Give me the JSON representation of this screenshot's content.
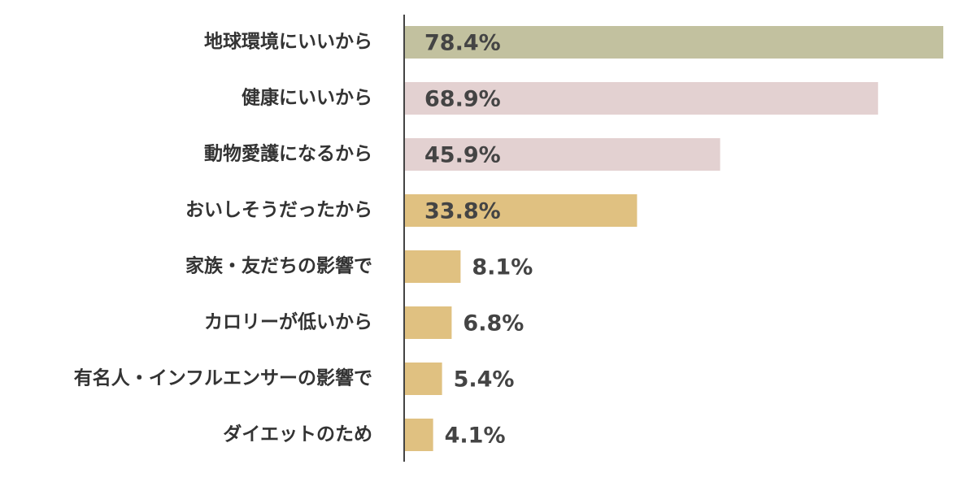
{
  "chart_data": {
    "type": "bar",
    "orientation": "horizontal",
    "categories": [
      "地球環境にいいから",
      "健康にいいから",
      "動物愛護になるから",
      "おいしそうだったから",
      "家族・友だちの影響で",
      "カロリーが低いから",
      "有名人・インフルエンサーの影響で",
      "ダイエットのため"
    ],
    "values": [
      78.4,
      68.9,
      45.9,
      33.8,
      8.1,
      6.8,
      5.4,
      4.1
    ],
    "value_labels": [
      "78.4%",
      "68.9%",
      "45.9%",
      "33.8%",
      "8.1%",
      "6.8%",
      "5.4%",
      "4.1%"
    ],
    "colors": [
      "#c2c19f",
      "#e3d1d1",
      "#e3d1d1",
      "#e0c181",
      "#e0c181",
      "#e0c181",
      "#e0c181",
      "#e0c181"
    ]
  }
}
